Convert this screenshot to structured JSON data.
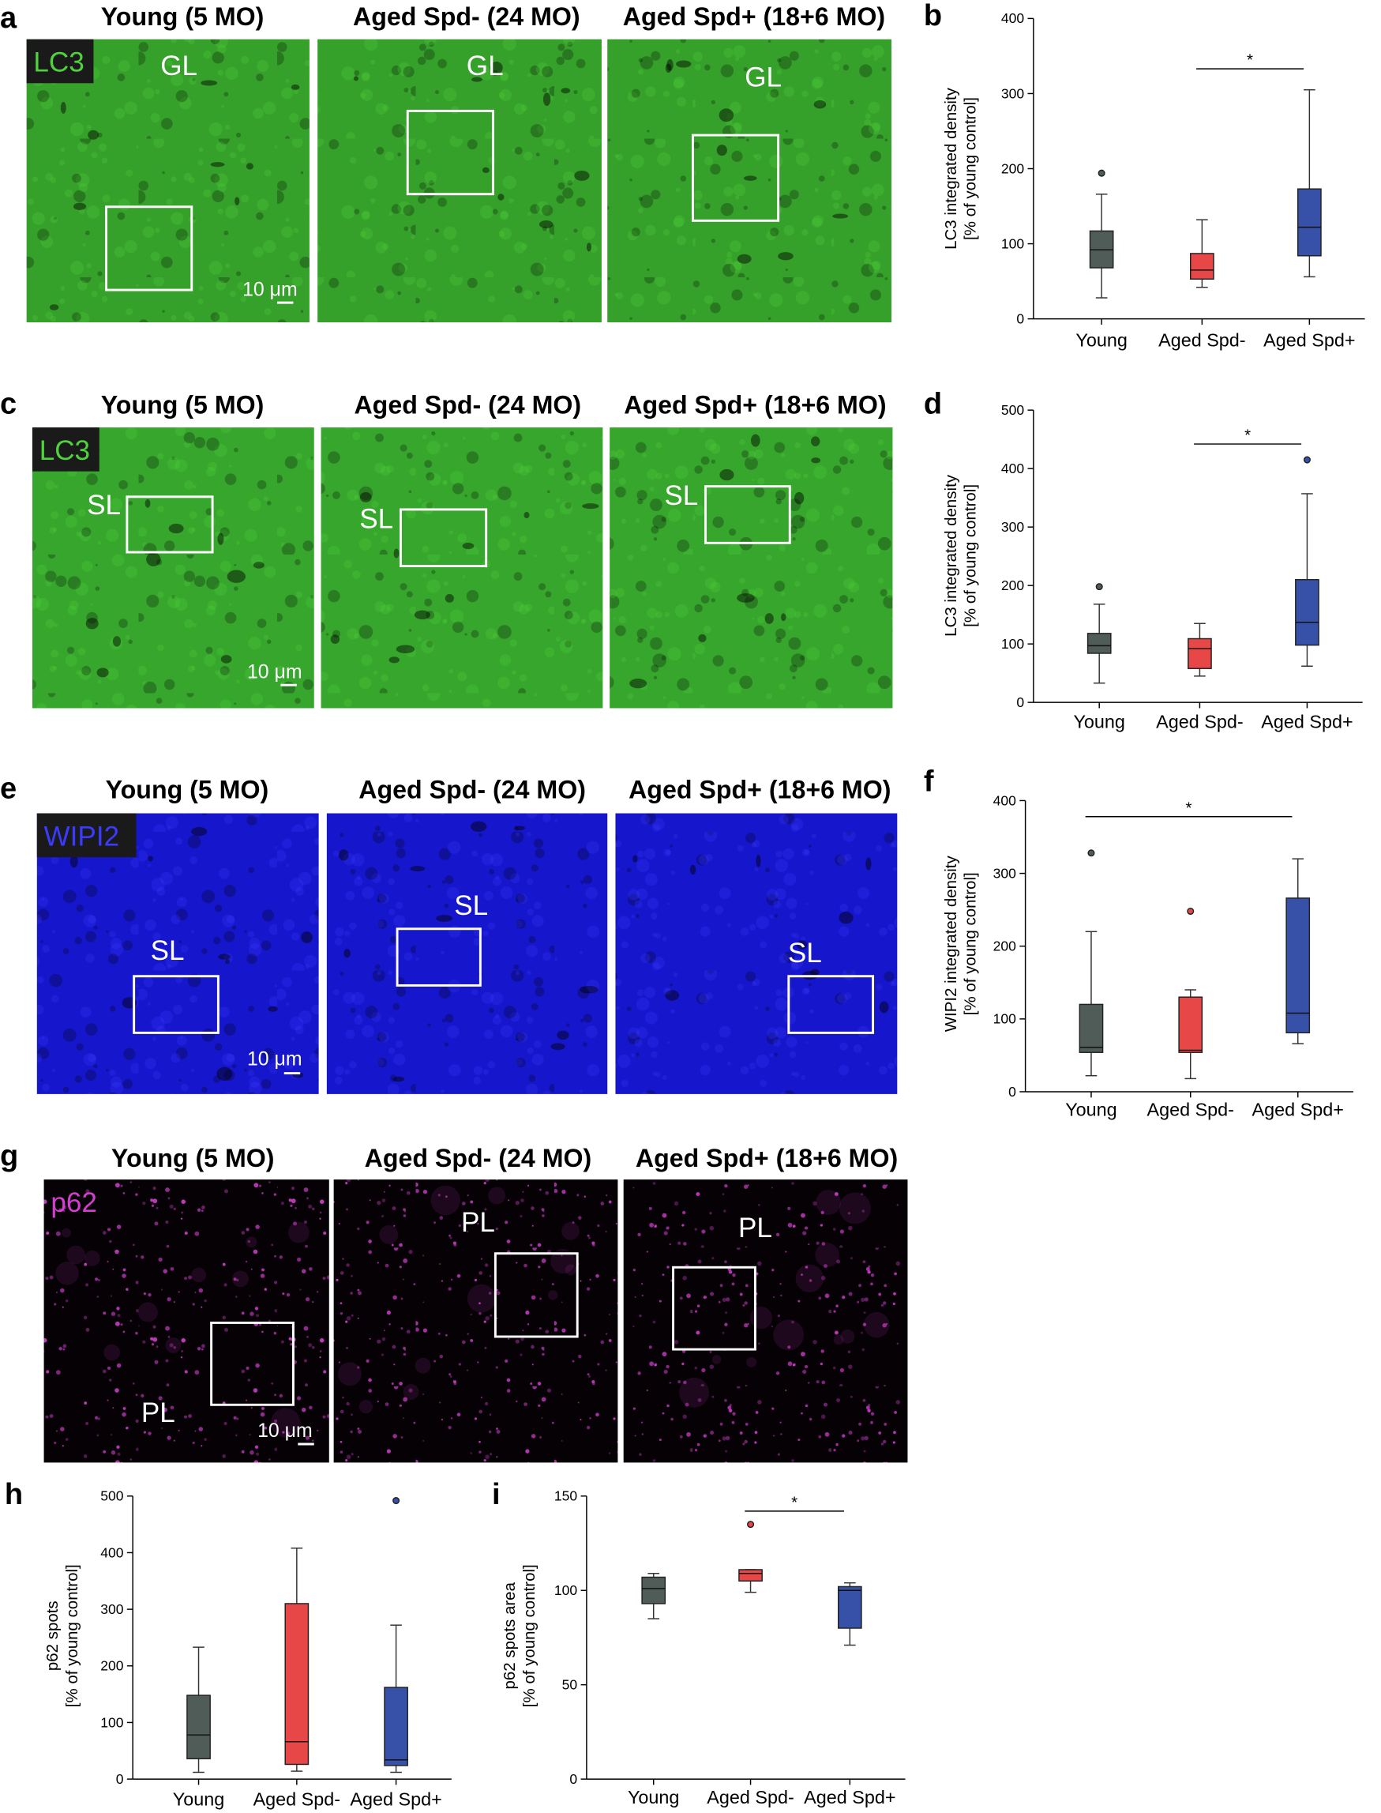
{
  "groups": {
    "a": [
      "Young (5 MO)",
      "Aged Spd- (24 MO)",
      "Aged Spd+ (18+6 MO)"
    ],
    "c": [
      "Young (5 MO)",
      "Aged Spd- (24 MO)",
      "Aged Spd+ (18+6 MO)"
    ],
    "e": [
      "Young (5 MO)",
      "Aged Spd- (24 MO)",
      "Aged Spd+ (18+6 MO)"
    ],
    "g": [
      "Young (5 MO)",
      "Aged Spd- (24 MO)",
      "Aged Spd+ (18+6 MO)"
    ]
  },
  "panels": {
    "a": {
      "label": "a",
      "stain": "LC3",
      "regions": [
        "GL",
        "GL",
        "GL"
      ],
      "scale": "10 μm",
      "base_color": "#35a02a",
      "stain_color": "#4fd23c"
    },
    "c": {
      "label": "c",
      "stain": "LC3",
      "regions": [
        "SL",
        "SL",
        "SL"
      ],
      "scale": "10 μm",
      "base_color": "#37a62c",
      "stain_color": "#4fd23c"
    },
    "e": {
      "label": "e",
      "stain": "WIPI2",
      "regions": [
        "SL",
        "SL",
        "SL"
      ],
      "scale": "10 μm",
      "base_color": "#1616cc",
      "stain_color": "#3b3bff"
    },
    "g": {
      "label": "g",
      "stain": "p62",
      "regions": [
        "PL",
        "PL",
        "PL"
      ],
      "scale": "10 μm",
      "base_color": "#050105",
      "stain_color": "#d43fd0"
    }
  },
  "colors": {
    "young": "#4f5c58",
    "aged_minus": "#e84747",
    "aged_plus": "#3750a8"
  },
  "chart_data": [
    {
      "id": "b",
      "label": "b",
      "type": "boxplot",
      "ylabel": [
        "LC3 integrated density",
        "[% of young control]"
      ],
      "ylim": [
        0,
        400
      ],
      "ticks": [
        "0",
        "100",
        "200",
        "300",
        "400"
      ],
      "categories": [
        "Young",
        "Aged Spd-",
        "Aged Spd+"
      ],
      "series": [
        {
          "name": "Young",
          "whisker_low": 28,
          "q1": 68,
          "median": 92,
          "q3": 117,
          "whisker_high": 166,
          "outliers": [
            194
          ]
        },
        {
          "name": "Aged Spd-",
          "whisker_low": 42,
          "q1": 53,
          "median": 65,
          "q3": 87,
          "whisker_high": 132,
          "outliers": []
        },
        {
          "name": "Aged Spd+",
          "whisker_low": 56,
          "q1": 84,
          "median": 122,
          "q3": 173,
          "whisker_high": 305,
          "outliers": []
        }
      ],
      "significance": [
        {
          "from": 1,
          "to": 2,
          "y": 333,
          "text": "*"
        }
      ]
    },
    {
      "id": "d",
      "label": "d",
      "type": "boxplot",
      "ylabel": [
        "LC3 integrated density",
        "[% of young control]"
      ],
      "ylim": [
        0,
        500
      ],
      "ticks": [
        "0",
        "100",
        "200",
        "300",
        "400",
        "500"
      ],
      "categories": [
        "Young",
        "Aged Spd-",
        "Aged Spd+"
      ],
      "series": [
        {
          "name": "Young",
          "whisker_low": 33,
          "q1": 84,
          "median": 97,
          "q3": 118,
          "whisker_high": 168,
          "outliers": [
            198
          ]
        },
        {
          "name": "Aged Spd-",
          "whisker_low": 45,
          "q1": 58,
          "median": 92,
          "q3": 109,
          "whisker_high": 135,
          "outliers": []
        },
        {
          "name": "Aged Spd+",
          "whisker_low": 62,
          "q1": 98,
          "median": 137,
          "q3": 210,
          "whisker_high": 357,
          "outliers": [
            415
          ]
        }
      ],
      "significance": [
        {
          "from": 1,
          "to": 2,
          "y": 442,
          "text": "*"
        }
      ]
    },
    {
      "id": "f",
      "label": "f",
      "type": "boxplot",
      "ylabel": [
        "WIPI2 integrated density",
        "[% of young control]"
      ],
      "ylim": [
        0,
        400
      ],
      "ticks": [
        "0",
        "100",
        "200",
        "300",
        "400"
      ],
      "categories": [
        "Young",
        "Aged Spd-",
        "Aged Spd+"
      ],
      "series": [
        {
          "name": "Young",
          "whisker_low": 22,
          "q1": 54,
          "median": 61,
          "q3": 120,
          "whisker_high": 220,
          "outliers": [
            328
          ]
        },
        {
          "name": "Aged Spd-",
          "whisker_low": 18,
          "q1": 54,
          "median": 57,
          "q3": 130,
          "whisker_high": 140,
          "outliers": [
            248
          ]
        },
        {
          "name": "Aged Spd+",
          "whisker_low": 66,
          "q1": 81,
          "median": 108,
          "q3": 266,
          "whisker_high": 320,
          "outliers": []
        }
      ],
      "significance": [
        {
          "from": 0,
          "to": 2,
          "y": 378,
          "text": "*"
        }
      ]
    },
    {
      "id": "h",
      "label": "h",
      "type": "boxplot",
      "ylabel": [
        "p62 spots",
        "[% of young control]"
      ],
      "ylim": [
        0,
        500
      ],
      "ticks": [
        "0",
        "100",
        "200",
        "300",
        "400",
        "500"
      ],
      "categories": [
        "Young",
        "Aged Spd-",
        "Aged Spd+"
      ],
      "series": [
        {
          "name": "Young",
          "whisker_low": 12,
          "q1": 36,
          "median": 78,
          "q3": 148,
          "whisker_high": 233,
          "outliers": []
        },
        {
          "name": "Aged Spd-",
          "whisker_low": 14,
          "q1": 26,
          "median": 66,
          "q3": 310,
          "whisker_high": 408,
          "outliers": []
        },
        {
          "name": "Aged Spd+",
          "whisker_low": 12,
          "q1": 24,
          "median": 34,
          "q3": 162,
          "whisker_high": 272,
          "outliers": [
            492
          ]
        }
      ],
      "significance": []
    },
    {
      "id": "i",
      "label": "i",
      "type": "boxplot",
      "ylabel": [
        "p62 spots area",
        "[% of young control]"
      ],
      "ylim": [
        0,
        150
      ],
      "ticks": [
        "0",
        "50",
        "100",
        "150"
      ],
      "categories": [
        "Young",
        "Aged Spd-",
        "Aged Spd+"
      ],
      "series": [
        {
          "name": "Young",
          "whisker_low": 85,
          "q1": 93,
          "median": 101,
          "q3": 107,
          "whisker_high": 109,
          "outliers": []
        },
        {
          "name": "Aged Spd-",
          "whisker_low": 99,
          "q1": 105,
          "median": 109,
          "q3": 111,
          "whisker_high": 111,
          "outliers": [
            135
          ]
        },
        {
          "name": "Aged Spd+",
          "whisker_low": 71,
          "q1": 80,
          "median": 100,
          "q3": 102,
          "whisker_high": 104,
          "outliers": []
        }
      ],
      "significance": [
        {
          "from": 1,
          "to": 2,
          "y": 142,
          "text": "*"
        }
      ]
    }
  ]
}
